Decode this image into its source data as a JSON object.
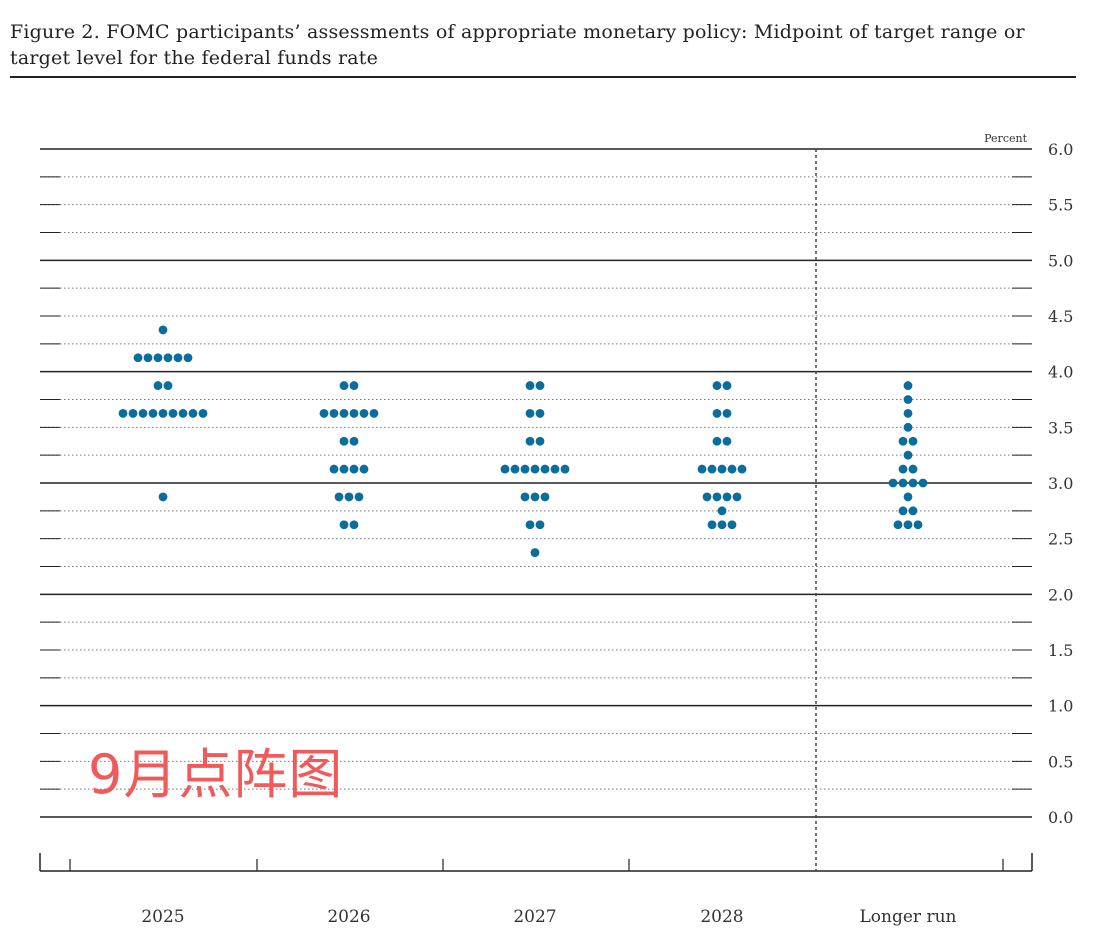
{
  "chart_data": {
    "type": "scatter",
    "title": "Figure 2. FOMC participants’ assessments of appropriate monetary policy: Midpoint of target range or target level for the federal funds rate",
    "ylabel": "Percent",
    "xlabel": "",
    "categories": [
      "2025",
      "2026",
      "2027",
      "2028",
      "Longer run"
    ],
    "ylim": [
      0.0,
      6.0
    ],
    "yticks": [
      "0.0",
      "0.5",
      "1.0",
      "1.5",
      "2.0",
      "2.5",
      "3.0",
      "3.5",
      "4.0",
      "4.5",
      "5.0",
      "5.5",
      "6.0"
    ],
    "grid": true,
    "dot_color": "#0a6d9c",
    "dots": [
      {
        "category": "2025",
        "counts": [
          [
            4.375,
            1
          ],
          [
            4.125,
            6
          ],
          [
            3.875,
            2
          ],
          [
            3.625,
            9
          ],
          [
            2.875,
            1
          ]
        ]
      },
      {
        "category": "2026",
        "counts": [
          [
            3.875,
            2
          ],
          [
            3.625,
            6
          ],
          [
            3.375,
            2
          ],
          [
            3.125,
            4
          ],
          [
            2.875,
            3
          ],
          [
            2.625,
            2
          ]
        ]
      },
      {
        "category": "2027",
        "counts": [
          [
            3.875,
            2
          ],
          [
            3.625,
            2
          ],
          [
            3.375,
            2
          ],
          [
            3.125,
            7
          ],
          [
            2.875,
            3
          ],
          [
            2.625,
            2
          ],
          [
            2.375,
            1
          ]
        ]
      },
      {
        "category": "2028",
        "counts": [
          [
            3.875,
            2
          ],
          [
            3.625,
            2
          ],
          [
            3.375,
            2
          ],
          [
            3.125,
            5
          ],
          [
            2.875,
            4
          ],
          [
            2.75,
            1
          ],
          [
            2.625,
            3
          ]
        ]
      },
      {
        "category": "Longer run",
        "counts": [
          [
            3.875,
            1
          ],
          [
            3.75,
            1
          ],
          [
            3.625,
            1
          ],
          [
            3.5,
            1
          ],
          [
            3.375,
            2
          ],
          [
            3.25,
            1
          ],
          [
            3.125,
            2
          ],
          [
            3.0,
            4
          ],
          [
            2.875,
            1
          ],
          [
            2.75,
            2
          ],
          [
            2.625,
            3
          ]
        ]
      }
    ]
  },
  "annotation": "9月点阵图"
}
